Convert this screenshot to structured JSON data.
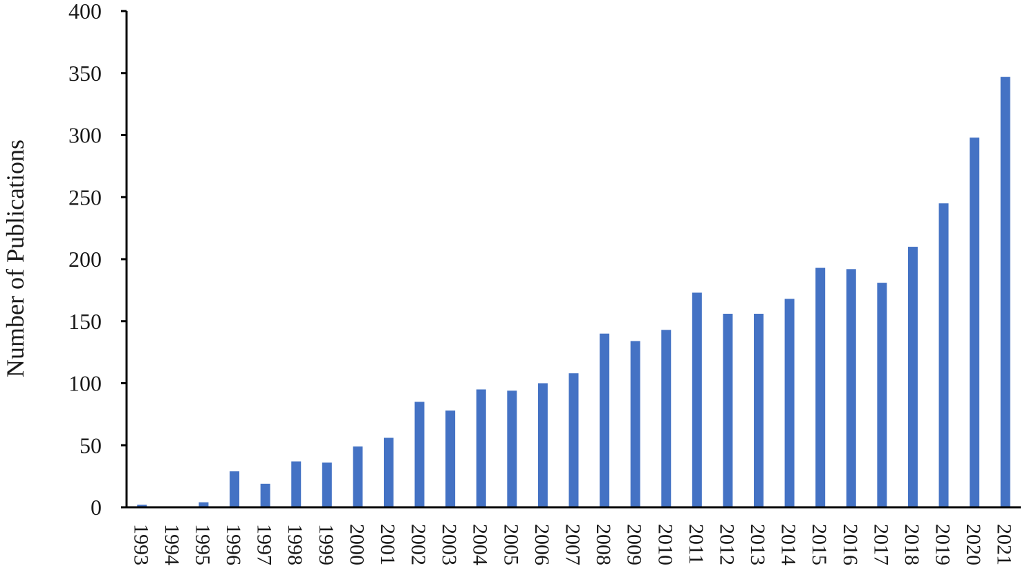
{
  "chart_data": {
    "type": "bar",
    "title": "",
    "xlabel": "",
    "ylabel": "Number of Publications",
    "ylim": [
      0,
      400
    ],
    "yticks": [
      0,
      50,
      100,
      150,
      200,
      250,
      300,
      350,
      400
    ],
    "grid": false,
    "legend": "none",
    "bar_color": "#4472C4",
    "categories": [
      "1993",
      "1994",
      "1995",
      "1996",
      "1997",
      "1998",
      "1999",
      "2000",
      "2001",
      "2002",
      "2003",
      "2004",
      "2005",
      "2006",
      "2007",
      "2008",
      "2009",
      "2010",
      "2011",
      "2012",
      "2013",
      "2014",
      "2015",
      "2016",
      "2017",
      "2018",
      "2019",
      "2020",
      "2021"
    ],
    "values": [
      2,
      0,
      4,
      29,
      19,
      37,
      36,
      49,
      56,
      85,
      78,
      95,
      94,
      100,
      108,
      140,
      134,
      143,
      173,
      156,
      156,
      168,
      193,
      192,
      181,
      210,
      245,
      298,
      347
    ]
  }
}
